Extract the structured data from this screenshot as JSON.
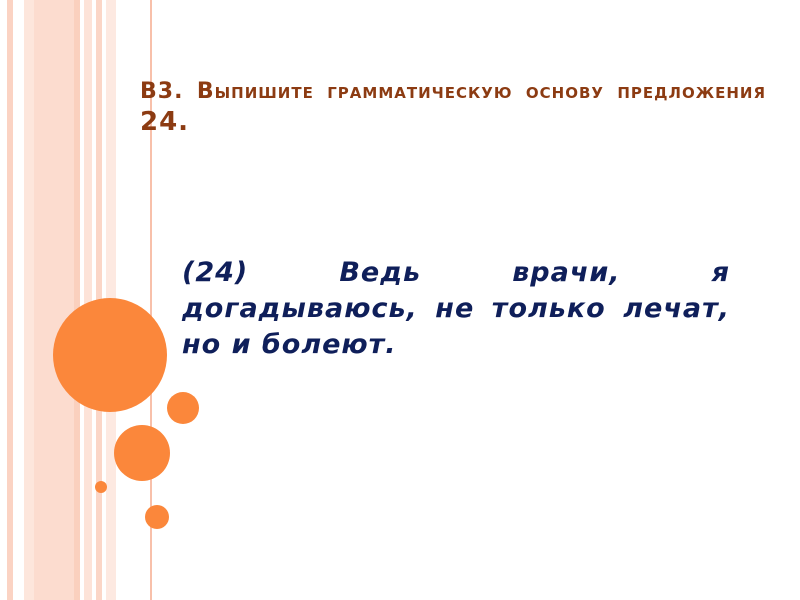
{
  "slide": {
    "title_lead": "В3. Выпишите грамматическую основу предложения",
    "title_number": "24.",
    "body": "(24) Ведь врачи, я догадываюсь, не только лечат, но и болеют."
  },
  "colors": {
    "accent": "#fb873b",
    "title": "#8c3b12",
    "body": "#0f1f5a",
    "stripes": "#fcd9cb"
  }
}
